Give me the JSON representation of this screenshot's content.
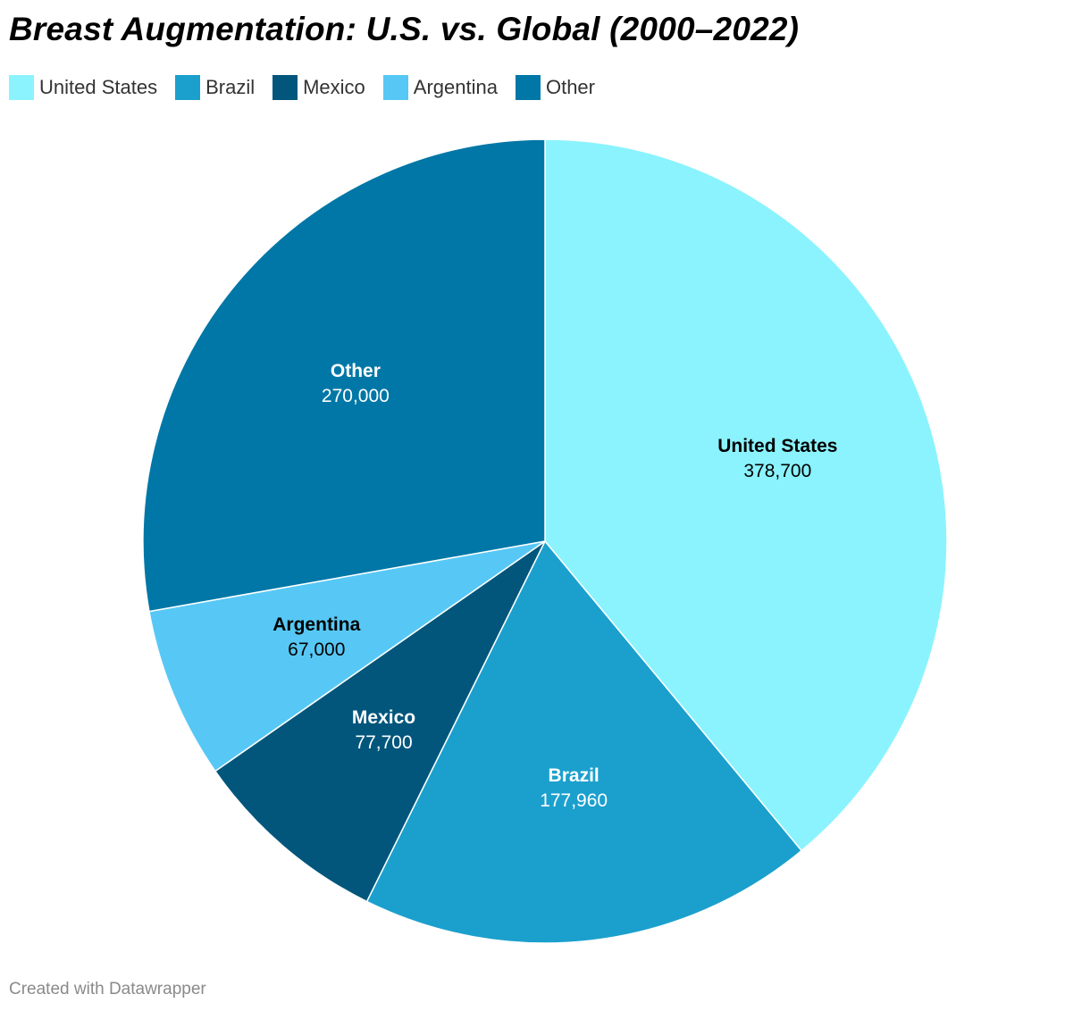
{
  "title": "Breast Augmentation: U.S. vs. Global (2000–2022)",
  "footer": "Created with Datawrapper",
  "chart_data": {
    "type": "pie",
    "title": "Breast Augmentation: U.S. vs. Global (2000–2022)",
    "legend_position": "top-left",
    "slices": [
      {
        "label": "United States",
        "value": 378700,
        "value_label": "378,700",
        "color": "#8af3fe",
        "text_color": "#000000"
      },
      {
        "label": "Brazil",
        "value": 177960,
        "value_label": "177,960",
        "color": "#1ba0cd",
        "text_color": "#ffffff"
      },
      {
        "label": "Mexico",
        "value": 77700,
        "value_label": "77,700",
        "color": "#02567c",
        "text_color": "#ffffff"
      },
      {
        "label": "Argentina",
        "value": 67000,
        "value_label": "67,000",
        "color": "#57c8f5",
        "text_color": "#000000"
      },
      {
        "label": "Other",
        "value": 270000,
        "value_label": "270,000",
        "color": "#0077a6",
        "text_color": "#ffffff"
      }
    ]
  }
}
